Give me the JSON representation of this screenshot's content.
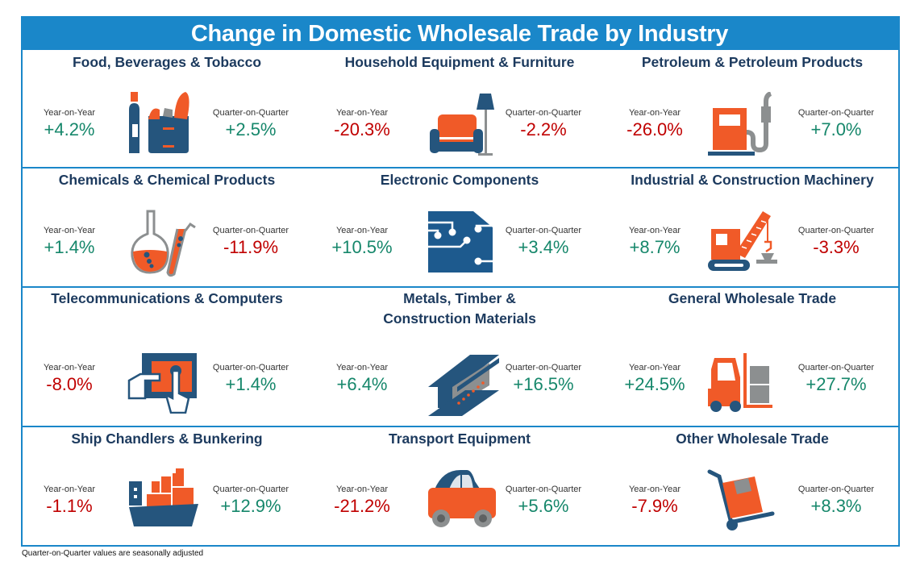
{
  "title": "Change in Domestic Wholesale Trade by Industry",
  "labels": {
    "yoy": "Year-on-Year",
    "qoq": "Quarter-on-Quarter"
  },
  "colors": {
    "accent": "#1a87c9",
    "heading": "#1c3a5e",
    "positive": "#16876b",
    "negative": "#c00000",
    "icon_orange": "#f05a28",
    "icon_navy": "#25557d",
    "icon_gray": "#8c8f90"
  },
  "industries": [
    {
      "name": "Food, Beverages & Tobacco",
      "icon": "grocery-bag-icon",
      "yoy": "+4.2%",
      "qoq": "+2.5%"
    },
    {
      "name": "Household Equipment & Furniture",
      "icon": "sofa-lamp-icon",
      "yoy": "-20.3%",
      "qoq": "-2.2%"
    },
    {
      "name": "Petroleum & Petroleum Products",
      "icon": "fuel-pump-icon",
      "yoy": "-26.0%",
      "qoq": "+7.0%"
    },
    {
      "name": "Chemicals & Chemical Products",
      "icon": "flask-test-tube-icon",
      "yoy": "+1.4%",
      "qoq": "-11.9%"
    },
    {
      "name": "Electronic Components",
      "icon": "circuit-chip-icon",
      "yoy": "+10.5%",
      "qoq": "+3.4%"
    },
    {
      "name": "Industrial & Construction Machinery",
      "icon": "crane-icon",
      "yoy": "+8.7%",
      "qoq": "-3.3%"
    },
    {
      "name": "Telecommunications & Computers",
      "icon": "tablet-touch-icon",
      "yoy": "-8.0%",
      "qoq": "+1.4%"
    },
    {
      "name": "Metals, Timber & Construction Materials",
      "icon": "steel-beam-icon",
      "yoy": "+6.4%",
      "qoq": "+16.5%"
    },
    {
      "name": "General Wholesale Trade",
      "icon": "forklift-icon",
      "yoy": "+24.5%",
      "qoq": "+27.7%"
    },
    {
      "name": "Ship Chandlers & Bunkering",
      "icon": "cargo-ship-icon",
      "yoy": "-1.1%",
      "qoq": "+12.9%"
    },
    {
      "name": "Transport Equipment",
      "icon": "car-icon",
      "yoy": "-21.2%",
      "qoq": "+5.6%"
    },
    {
      "name": "Other Wholesale Trade",
      "icon": "hand-truck-icon",
      "yoy": "-7.9%",
      "qoq": "+8.3%"
    }
  ],
  "footnote": "Quarter-on-Quarter values are seasonally adjusted"
}
